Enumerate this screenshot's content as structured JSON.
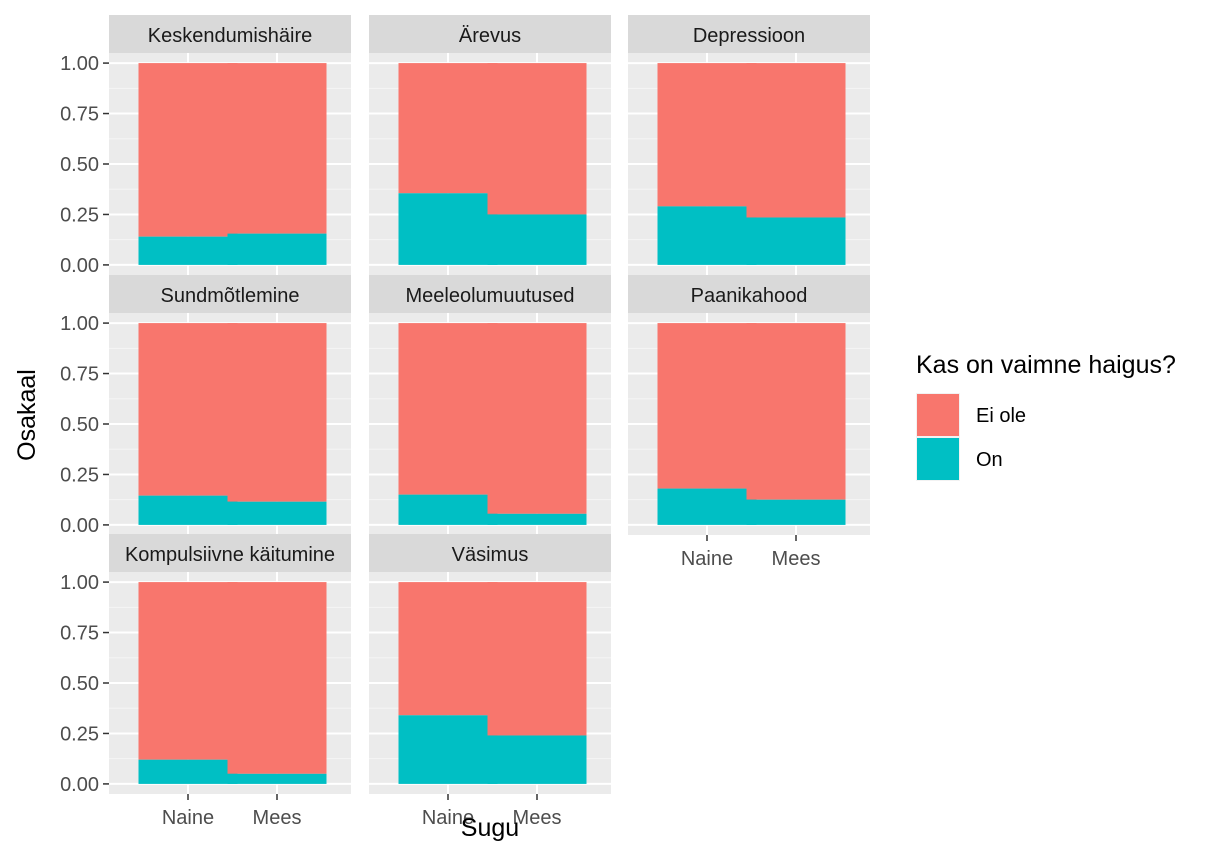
{
  "chart_data": {
    "type": "bar",
    "stacked": true,
    "facet_layout": "3x3",
    "xlabel": "Sugu",
    "ylabel": "Osakaal",
    "ylim": [
      0,
      1
    ],
    "yticks": [
      "0.00",
      "0.25",
      "0.50",
      "0.75",
      "1.00"
    ],
    "categories": [
      "Naine",
      "Mees"
    ],
    "colors": {
      "Ei ole": "#F8766D",
      "On": "#00BFC4"
    },
    "legend": {
      "title": "Kas on vaimne haigus?",
      "position": "right",
      "items": [
        "Ei ole",
        "On"
      ]
    },
    "panels": [
      {
        "title": "Keskendumishäire",
        "on": [
          0.14,
          0.155
        ]
      },
      {
        "title": "Ärevus",
        "on": [
          0.355,
          0.25
        ]
      },
      {
        "title": "Depressioon",
        "on": [
          0.29,
          0.235
        ]
      },
      {
        "title": "Sundmõtlemine",
        "on": [
          0.145,
          0.115
        ]
      },
      {
        "title": "Meeleolumuutused",
        "on": [
          0.15,
          0.055
        ]
      },
      {
        "title": "Paanikahood",
        "on": [
          0.18,
          0.125
        ]
      },
      {
        "title": "Kompulsiivne käitumine",
        "on": [
          0.12,
          0.05
        ]
      },
      {
        "title": "Väsimus",
        "on": [
          0.34,
          0.24
        ]
      }
    ]
  }
}
